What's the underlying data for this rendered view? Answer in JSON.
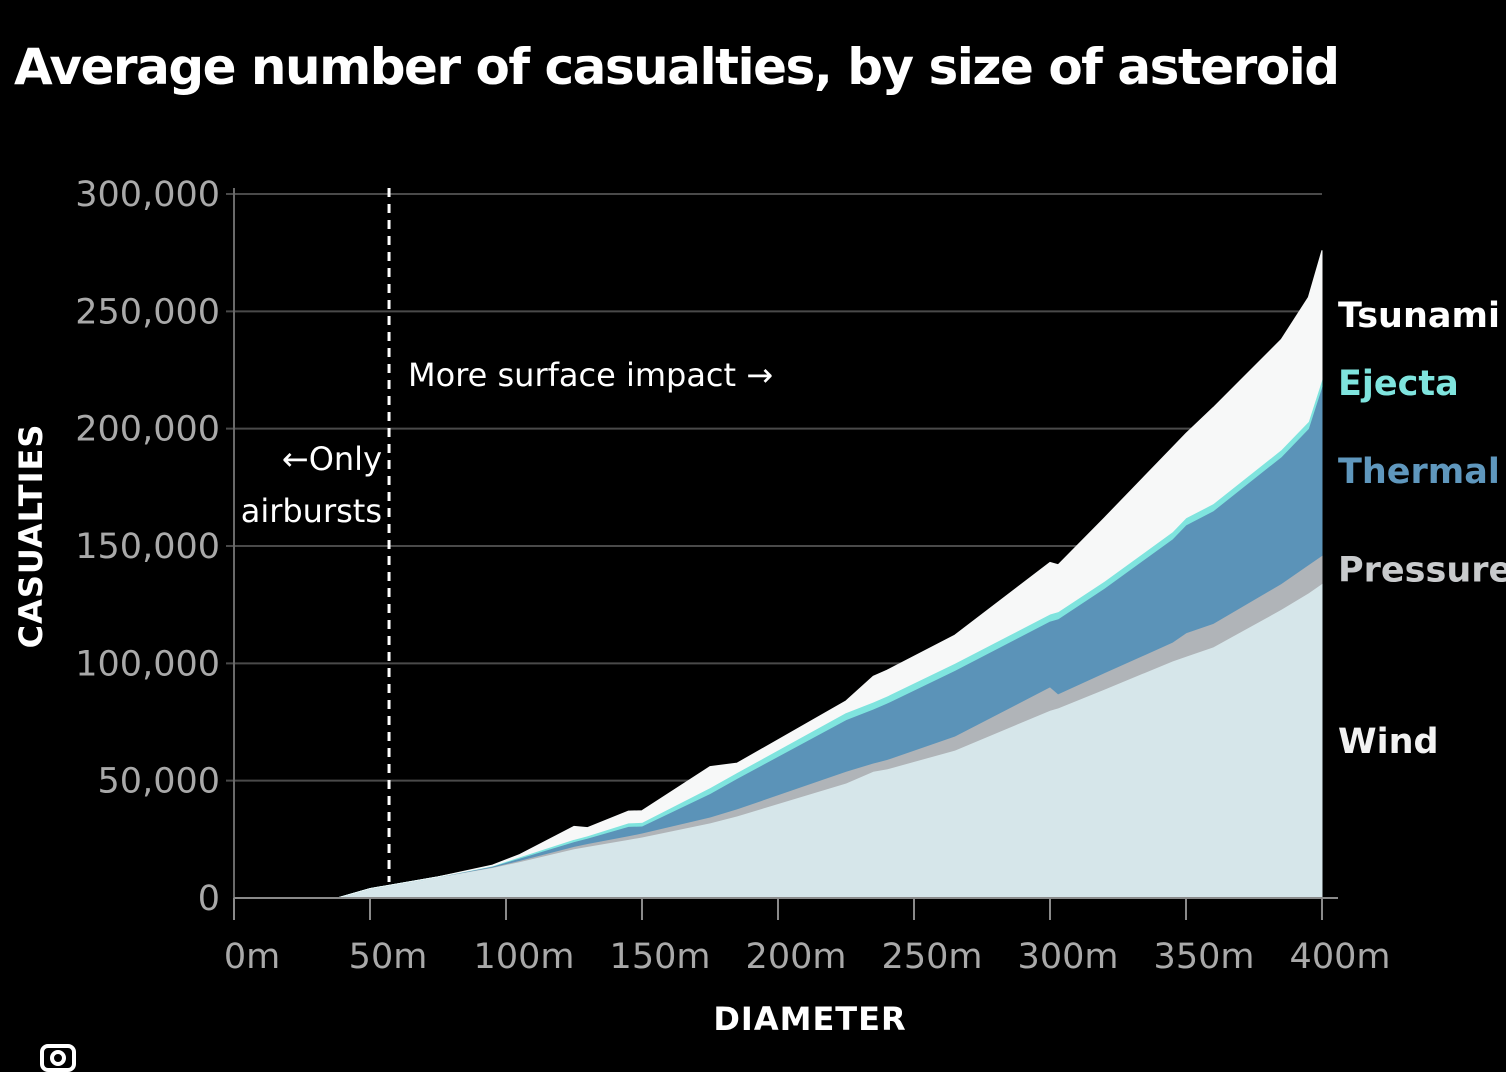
{
  "chart_data": {
    "type": "area",
    "stacked": true,
    "title": "Average number of casualties, by size of asteroid",
    "xlabel": "DIAMETER",
    "ylabel": "CASUALTIES",
    "x_ticks": [
      "0m",
      "50m",
      "100m",
      "150m",
      "200m",
      "250m",
      "300m",
      "350m",
      "400m"
    ],
    "y_ticks": [
      "0",
      "50,000",
      "100,000",
      "150,000",
      "200,000",
      "250,000",
      "300,000"
    ],
    "xlim": [
      0,
      400
    ],
    "ylim": [
      0,
      300000
    ],
    "grid": true,
    "x": [
      38,
      50,
      75,
      95,
      105,
      125,
      130,
      145,
      150,
      175,
      185,
      225,
      235,
      240,
      265,
      300,
      303,
      320,
      345,
      350,
      360,
      385,
      395,
      400
    ],
    "series": [
      {
        "name": "Wind",
        "color": "#d6e6ea",
        "values": [
          0,
          4000,
          9000,
          13000,
          15500,
          21000,
          22000,
          25000,
          26000,
          32000,
          35000,
          49000,
          54000,
          55000,
          63000,
          80000,
          81000,
          89000,
          101000,
          103000,
          107000,
          123000,
          130000,
          134000
        ]
      },
      {
        "name": "Pressure",
        "color": "#b0b4b8",
        "values": [
          0,
          0,
          0,
          200,
          500,
          1000,
          1200,
          1500,
          1700,
          2500,
          3000,
          5000,
          3500,
          4000,
          6000,
          10000,
          6000,
          7000,
          8000,
          10000,
          10000,
          11000,
          12000,
          12000
        ]
      },
      {
        "name": "Thermal",
        "color": "#5b93b8",
        "values": [
          0,
          0,
          0,
          300,
          1000,
          2000,
          2300,
          4000,
          3000,
          10000,
          13000,
          22000,
          23000,
          24000,
          28000,
          28000,
          32000,
          36000,
          44000,
          46000,
          48000,
          54000,
          58000,
          72000
        ]
      },
      {
        "name": "Ejecta",
        "color": "#7fe4de",
        "values": [
          0,
          0,
          0,
          200,
          500,
          1000,
          1000,
          1500,
          1500,
          2500,
          2500,
          3000,
          3000,
          3000,
          3000,
          3000,
          3000,
          3000,
          3000,
          3000,
          3000,
          3000,
          3000,
          3000
        ]
      },
      {
        "name": "Tsunami",
        "color": "#f7f8f8",
        "values": [
          0,
          0,
          0,
          300,
          1000,
          5500,
          3500,
          5000,
          5000,
          9000,
          4000,
          5000,
          11000,
          11000,
          12000,
          22000,
          20000,
          27000,
          36000,
          36000,
          41000,
          47000,
          53000,
          55000
        ]
      }
    ],
    "series_label_colors": {
      "Tsunami": "#ffffff",
      "Ejecta": "#7fe4de",
      "Thermal": "#5f97bd",
      "Pressure": "#c8cacc",
      "Wind": "#f2f2f2"
    },
    "annotations": {
      "divider_x": 57,
      "left_line1": "←Only",
      "left_line2": "airbursts",
      "right": "More surface impact →"
    },
    "colors": {
      "background": "#000000",
      "grid": "#4a4a4a",
      "tick_text": "#a9a9a9"
    }
  }
}
